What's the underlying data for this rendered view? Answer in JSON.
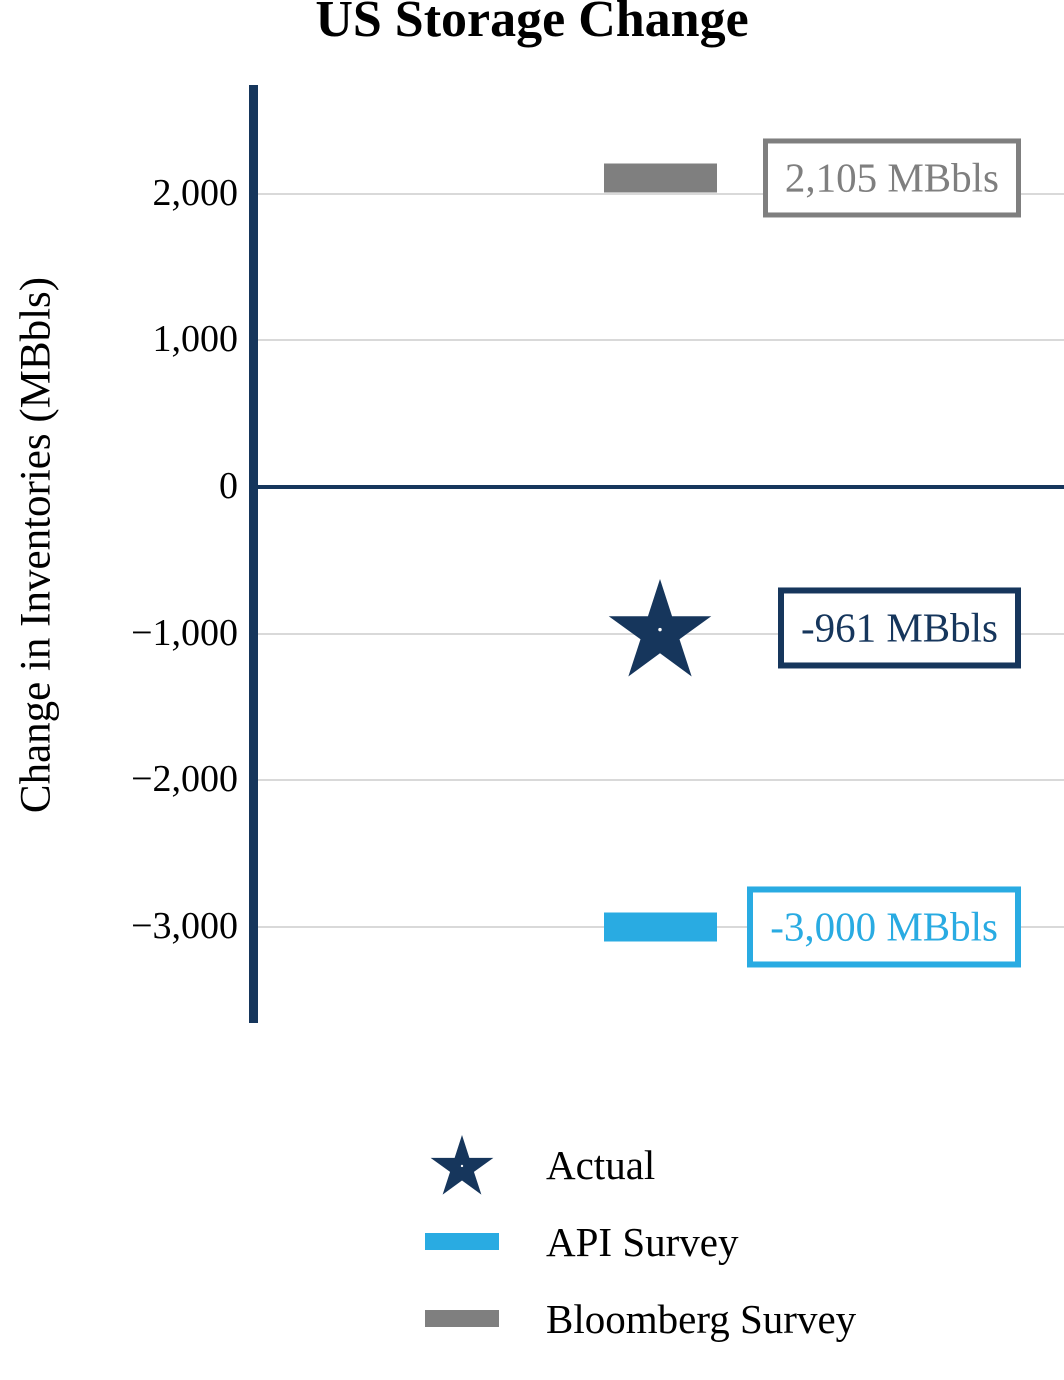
{
  "title": "US Storage Change",
  "colors": {
    "navy": "#16365c",
    "light_blue": "#29abe2",
    "gray": "#7f7f7f",
    "gridline": "#d9d9d9",
    "background": "#ffffff"
  },
  "chart_data": {
    "type": "bar",
    "title": "US Storage Change",
    "xlabel": "",
    "ylabel": "Change in Inventories (MBbls)",
    "ylim": [
      -3700,
      2750
    ],
    "grid": true,
    "yticks": [
      2000,
      1000,
      0,
      -1000,
      -2000,
      -3000
    ],
    "ytick_labels": [
      "2,000",
      "1,000",
      "0",
      "−1,000",
      "−2,000",
      "−3,000"
    ],
    "series": [
      {
        "name": "Actual",
        "marker": "star",
        "value": -961,
        "label": "-961 MBbls",
        "color": "#16365c"
      },
      {
        "name": "API Survey",
        "marker": "bar",
        "value": -3000,
        "label": "-3,000 MBbls",
        "color": "#29abe2"
      },
      {
        "name": "Bloomberg Survey",
        "marker": "bar",
        "value": 2105,
        "label": "2,105 MBbls",
        "color": "#7f7f7f"
      }
    ],
    "legend": [
      {
        "label": "Actual",
        "marker": "star",
        "color": "#16365c"
      },
      {
        "label": "API Survey",
        "marker": "bar",
        "color": "#29abe2"
      },
      {
        "label": "Bloomberg Survey",
        "marker": "bar",
        "color": "#7f7f7f"
      }
    ],
    "legend_position": "bottom"
  }
}
